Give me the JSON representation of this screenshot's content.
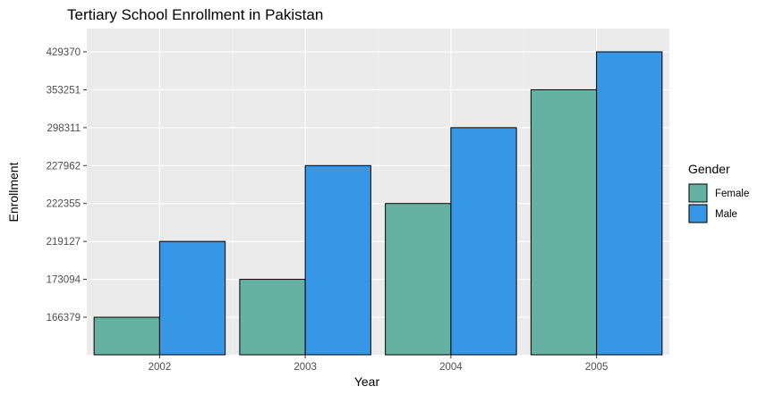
{
  "chart_data": {
    "type": "bar",
    "title": "Tertiary School Enrollment in Pakistan",
    "xlabel": "Year",
    "ylabel": "Enrollment",
    "categories": [
      "2002",
      "2003",
      "2004",
      "2005"
    ],
    "y_ticks": [
      "166379",
      "173094",
      "219127",
      "222355",
      "227962",
      "298311",
      "353251",
      "429370"
    ],
    "y_scale": "discrete",
    "grid": true,
    "legend": {
      "title": "Gender",
      "position": "right"
    },
    "series": [
      {
        "name": "Female",
        "color": "#66B2A2",
        "values": [
          166379,
          173094,
          222355,
          353251
        ]
      },
      {
        "name": "Male",
        "color": "#3697E6",
        "values": [
          219127,
          227962,
          298311,
          429370
        ]
      }
    ]
  }
}
